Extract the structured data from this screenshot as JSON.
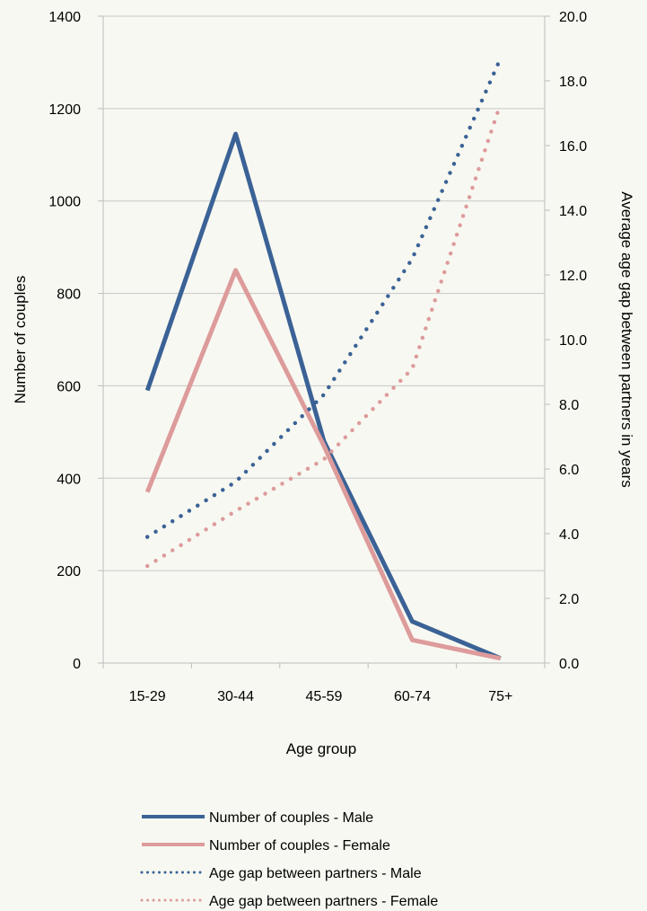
{
  "chart_data": {
    "type": "line",
    "title": "",
    "xlabel": "Age group",
    "ylabel_left": "Number of couples",
    "ylabel_right": "Average age gap between partners in years",
    "categories": [
      "15-29",
      "30-44",
      "45-59",
      "60-74",
      "75+"
    ],
    "ylim_left": [
      0,
      1400
    ],
    "ylim_right": [
      0,
      20
    ],
    "yticks_left": [
      "0",
      "200",
      "400",
      "600",
      "800",
      "1000",
      "1200",
      "1400"
    ],
    "yticks_right": [
      "0.0",
      "2.0",
      "4.0",
      "6.0",
      "8.0",
      "10.0",
      "12.0",
      "14.0",
      "16.0",
      "18.0",
      "20.0"
    ],
    "grid": "horizontal",
    "legend_position": "bottom",
    "series": [
      {
        "name": "Number of couples -  Male",
        "axis": "left",
        "style": "solid",
        "color": "#3b6296",
        "values": [
          590,
          1145,
          480,
          90,
          10
        ]
      },
      {
        "name": "Number of couples -  Female",
        "axis": "left",
        "style": "solid",
        "color": "#dd9b9b",
        "values": [
          370,
          850,
          470,
          50,
          10
        ]
      },
      {
        "name": "Age gap between partners -  Male",
        "axis": "right",
        "style": "dotted",
        "color": "#3b6296",
        "values": [
          3.9,
          5.6,
          8.3,
          12.5,
          18.7
        ]
      },
      {
        "name": "Age gap between partners -  Female",
        "axis": "right",
        "style": "dotted",
        "color": "#dd9b9b",
        "values": [
          3.0,
          4.7,
          6.3,
          9.1,
          17.3
        ]
      }
    ]
  }
}
